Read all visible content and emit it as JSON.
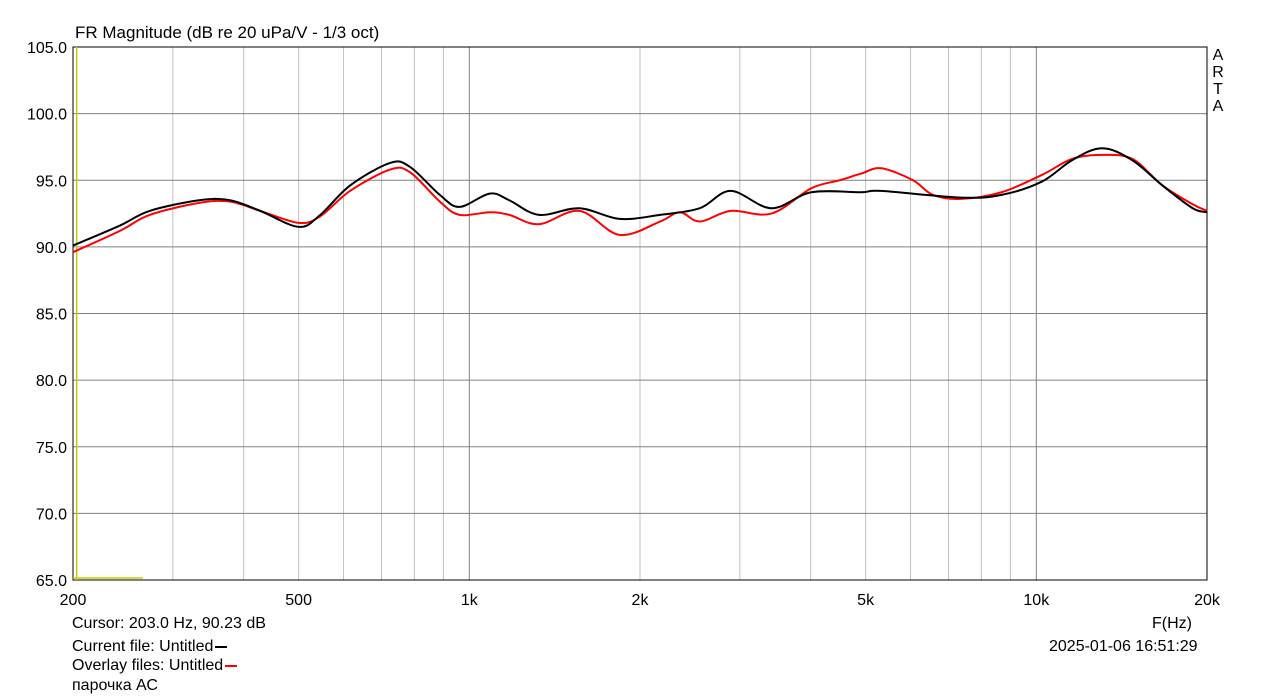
{
  "chart_data": {
    "type": "line",
    "title": "FR Magnitude (dB re 20 uPa/V - 1/3 oct)",
    "xlabel": "F(Hz)",
    "xscale": "log",
    "xlim": [
      200,
      20000
    ],
    "ylim": [
      65,
      105
    ],
    "grid": true,
    "y_ticks": [
      "105.0",
      "100.0",
      "95.0",
      "90.0",
      "85.0",
      "80.0",
      "75.0",
      "70.0",
      "65.0"
    ],
    "x_ticks": [
      {
        "v": 200,
        "l": "200"
      },
      {
        "v": 500,
        "l": "500"
      },
      {
        "v": 1000,
        "l": "1k"
      },
      {
        "v": 2000,
        "l": "2k"
      },
      {
        "v": 5000,
        "l": "5k"
      },
      {
        "v": 10000,
        "l": "10k"
      },
      {
        "v": 20000,
        "l": "20k"
      }
    ],
    "cursor": {
      "x": 203,
      "color": "#c8c800"
    },
    "series": [
      {
        "color": "#000000",
        "x": [
          200,
          242,
          273,
          334,
          378,
          428,
          500,
          546,
          616,
          725,
          786,
          887,
          961,
          1086,
          1176,
          1327,
          1564,
          1840,
          2170,
          2550,
          2890,
          3410,
          4010,
          4910,
          5330,
          7370,
          8680,
          10230,
          11560,
          13060,
          14770,
          16700,
          18870,
          20000
        ],
        "y": [
          90.1,
          91.6,
          92.7,
          93.5,
          93.5,
          92.7,
          91.5,
          92.4,
          94.6,
          96.3,
          96.0,
          93.9,
          93.0,
          94.0,
          93.5,
          92.4,
          92.9,
          92.1,
          92.4,
          92.9,
          94.2,
          92.9,
          94.1,
          94.1,
          94.2,
          93.7,
          93.9,
          94.9,
          96.5,
          97.4,
          96.5,
          94.6,
          92.9,
          92.6
        ]
      },
      {
        "color": "#ff0000",
        "x": [
          200,
          242,
          273,
          334,
          378,
          428,
          500,
          546,
          616,
          725,
          786,
          887,
          961,
          1086,
          1176,
          1327,
          1564,
          1840,
          2170,
          2350,
          2550,
          2890,
          3410,
          4010,
          4500,
          4910,
          5330,
          6060,
          6570,
          7370,
          8680,
          10230,
          11560,
          13060,
          14770,
          16700,
          18870,
          20000
        ],
        "y": [
          89.6,
          91.2,
          92.4,
          93.3,
          93.4,
          92.7,
          91.8,
          92.3,
          94.2,
          95.8,
          95.6,
          93.4,
          92.4,
          92.6,
          92.4,
          91.7,
          92.7,
          90.9,
          91.9,
          92.6,
          91.9,
          92.7,
          92.5,
          94.4,
          95.0,
          95.5,
          95.9,
          95.0,
          93.9,
          93.6,
          94.1,
          95.4,
          96.6,
          96.9,
          96.6,
          94.6,
          93.2,
          92.7
        ]
      }
    ]
  },
  "watermark": [
    "A",
    "R",
    "T",
    "A"
  ],
  "info": {
    "cursor": "Cursor: 203.0 Hz, 90.23 dB",
    "current_file": "Current file: Untitled",
    "overlay_files": "Overlay files: Untitled",
    "note": "парочка АС",
    "datetime": "2025-01-06  16:51:29"
  }
}
